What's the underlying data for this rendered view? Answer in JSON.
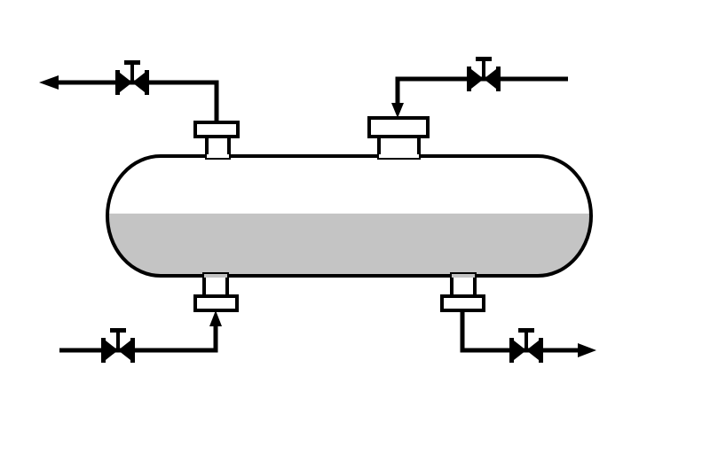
{
  "diagram": {
    "kind": "horizontal-separator-vessel",
    "colors": {
      "background": "#ffffff",
      "line": "#000000",
      "vessel_fill": "#ffffff",
      "liquid_fill": "#c4c4c4"
    },
    "liquid_level_fraction": 0.52,
    "nozzles": [
      {
        "id": "top-left",
        "position": "top",
        "service": "outlet"
      },
      {
        "id": "top-right",
        "position": "top",
        "service": "inlet"
      },
      {
        "id": "bottom-left",
        "position": "bottom",
        "service": "inlet"
      },
      {
        "id": "bottom-right",
        "position": "bottom",
        "service": "outlet"
      }
    ],
    "valves": [
      {
        "id": "valve-top-left",
        "icon": "gate-valve-icon"
      },
      {
        "id": "valve-top-right",
        "icon": "gate-valve-icon"
      },
      {
        "id": "valve-bottom-left",
        "icon": "gate-valve-icon"
      },
      {
        "id": "valve-bottom-right",
        "icon": "gate-valve-icon"
      }
    ],
    "flow_arrows": [
      {
        "id": "arrow-top-left-outlet",
        "direction": "left"
      },
      {
        "id": "arrow-top-right-inlet",
        "direction": "down"
      },
      {
        "id": "arrow-bottom-left-inlet",
        "direction": "up"
      },
      {
        "id": "arrow-bottom-right-outlet",
        "direction": "right"
      }
    ]
  }
}
